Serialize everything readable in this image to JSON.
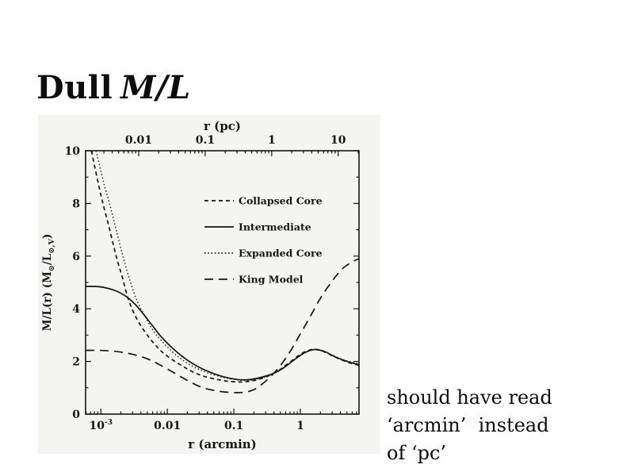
{
  "slide": {
    "title": {
      "plain": "Dull",
      "math": "M/L"
    },
    "note_lines": [
      "should have read",
      "‘arcmin’  instead",
      "of ‘pc’"
    ]
  },
  "chart_data": {
    "type": "line",
    "title": "",
    "grid": false,
    "legend_position": "upper middle inside",
    "x_axis": {
      "scale": "log",
      "min": 0.00059,
      "max": 7.6,
      "bottom_label": "r (arcmin)",
      "bottom_ticks": [
        {
          "v": 0.001,
          "label": "10^-3"
        },
        {
          "v": 0.01,
          "label": "0.01"
        },
        {
          "v": 0.1,
          "label": "0.1"
        },
        {
          "v": 1,
          "label": "1"
        }
      ],
      "top_label": "r (pc)",
      "top_scale_factor": 2.7,
      "top_ticks": [
        {
          "v": 0.01,
          "label": "0.01"
        },
        {
          "v": 0.1,
          "label": "0.1"
        },
        {
          "v": 1,
          "label": "1"
        },
        {
          "v": 10,
          "label": "10"
        }
      ]
    },
    "y_axis": {
      "min": 0,
      "max": 10,
      "label": "M/L(r) (M⊙/L⊙,V)",
      "label_parts": [
        {
          "t": "M/L(r)  (M"
        },
        {
          "t": "⊙",
          "sub": true
        },
        {
          "t": "/L"
        },
        {
          "t": "⊙,V",
          "sub": true
        },
        {
          "t": ")"
        }
      ],
      "ticks": [
        {
          "v": 10,
          "label": "10"
        },
        {
          "v": 8,
          "label": "8"
        },
        {
          "v": 6,
          "label": "6"
        },
        {
          "v": 4,
          "label": "4"
        },
        {
          "v": 2,
          "label": "2"
        },
        {
          "v": 0,
          "label": "0"
        }
      ]
    },
    "legend": [
      {
        "label": "Collapsed Core",
        "style": "dashed"
      },
      {
        "label": "Intermediate",
        "style": "solid"
      },
      {
        "label": "Expanded Core",
        "style": "dotted"
      },
      {
        "label": "King Model",
        "style": "longdash"
      }
    ],
    "series": [
      {
        "name": "Collapsed Core",
        "style": "dashed",
        "points": [
          [
            0.00072,
            10
          ],
          [
            0.0009,
            8.85
          ],
          [
            0.00105,
            8.1
          ],
          [
            0.0013,
            7.2
          ],
          [
            0.0017,
            6.0
          ],
          [
            0.0021,
            5.2
          ],
          [
            0.0026,
            4.35
          ],
          [
            0.0035,
            3.6
          ],
          [
            0.005,
            3.0
          ],
          [
            0.007,
            2.55
          ],
          [
            0.01,
            2.2
          ],
          [
            0.018,
            1.78
          ],
          [
            0.03,
            1.5
          ],
          [
            0.06,
            1.3
          ],
          [
            0.12,
            1.22
          ],
          [
            0.22,
            1.3
          ],
          [
            0.4,
            1.55
          ],
          [
            0.65,
            1.92
          ],
          [
            1.0,
            2.27
          ],
          [
            1.45,
            2.45
          ],
          [
            2.1,
            2.4
          ],
          [
            3.2,
            2.18
          ],
          [
            5.0,
            1.98
          ],
          [
            7.6,
            1.85
          ]
        ]
      },
      {
        "name": "Intermediate",
        "style": "solid",
        "points": [
          [
            0.00059,
            4.85
          ],
          [
            0.001,
            4.83
          ],
          [
            0.0016,
            4.7
          ],
          [
            0.0023,
            4.5
          ],
          [
            0.0032,
            4.2
          ],
          [
            0.0042,
            3.85
          ],
          [
            0.0056,
            3.45
          ],
          [
            0.008,
            2.95
          ],
          [
            0.012,
            2.5
          ],
          [
            0.02,
            2.05
          ],
          [
            0.035,
            1.7
          ],
          [
            0.07,
            1.42
          ],
          [
            0.14,
            1.3
          ],
          [
            0.26,
            1.4
          ],
          [
            0.48,
            1.65
          ],
          [
            0.75,
            2.0
          ],
          [
            1.1,
            2.3
          ],
          [
            1.6,
            2.45
          ],
          [
            2.3,
            2.38
          ],
          [
            3.5,
            2.15
          ],
          [
            5.5,
            1.97
          ],
          [
            7.6,
            1.88
          ]
        ]
      },
      {
        "name": "Expanded Core",
        "style": "dotted",
        "points": [
          [
            0.00085,
            10
          ],
          [
            0.0011,
            8.8
          ],
          [
            0.00135,
            8.0
          ],
          [
            0.0017,
            7.0
          ],
          [
            0.0022,
            5.9
          ],
          [
            0.0028,
            5.0
          ],
          [
            0.0035,
            4.3
          ],
          [
            0.0046,
            3.72
          ],
          [
            0.0062,
            3.15
          ],
          [
            0.0088,
            2.7
          ],
          [
            0.013,
            2.28
          ],
          [
            0.022,
            1.87
          ],
          [
            0.04,
            1.57
          ],
          [
            0.08,
            1.36
          ],
          [
            0.16,
            1.28
          ],
          [
            0.3,
            1.42
          ],
          [
            0.55,
            1.75
          ],
          [
            0.85,
            2.1
          ],
          [
            1.25,
            2.36
          ],
          [
            1.75,
            2.46
          ],
          [
            2.6,
            2.32
          ],
          [
            4.2,
            2.08
          ],
          [
            7.6,
            1.9
          ]
        ]
      },
      {
        "name": "King Model",
        "style": "longdash",
        "points": [
          [
            0.00059,
            2.42
          ],
          [
            0.001,
            2.42
          ],
          [
            0.0018,
            2.37
          ],
          [
            0.003,
            2.27
          ],
          [
            0.005,
            2.1
          ],
          [
            0.008,
            1.85
          ],
          [
            0.013,
            1.55
          ],
          [
            0.02,
            1.28
          ],
          [
            0.032,
            1.03
          ],
          [
            0.05,
            0.9
          ],
          [
            0.08,
            0.83
          ],
          [
            0.13,
            0.82
          ],
          [
            0.2,
            0.93
          ],
          [
            0.3,
            1.25
          ],
          [
            0.45,
            1.7
          ],
          [
            0.65,
            2.25
          ],
          [
            0.95,
            2.95
          ],
          [
            1.4,
            3.7
          ],
          [
            2.0,
            4.4
          ],
          [
            2.9,
            5.0
          ],
          [
            4.2,
            5.5
          ],
          [
            6.0,
            5.78
          ],
          [
            7.6,
            5.9
          ]
        ]
      }
    ]
  }
}
